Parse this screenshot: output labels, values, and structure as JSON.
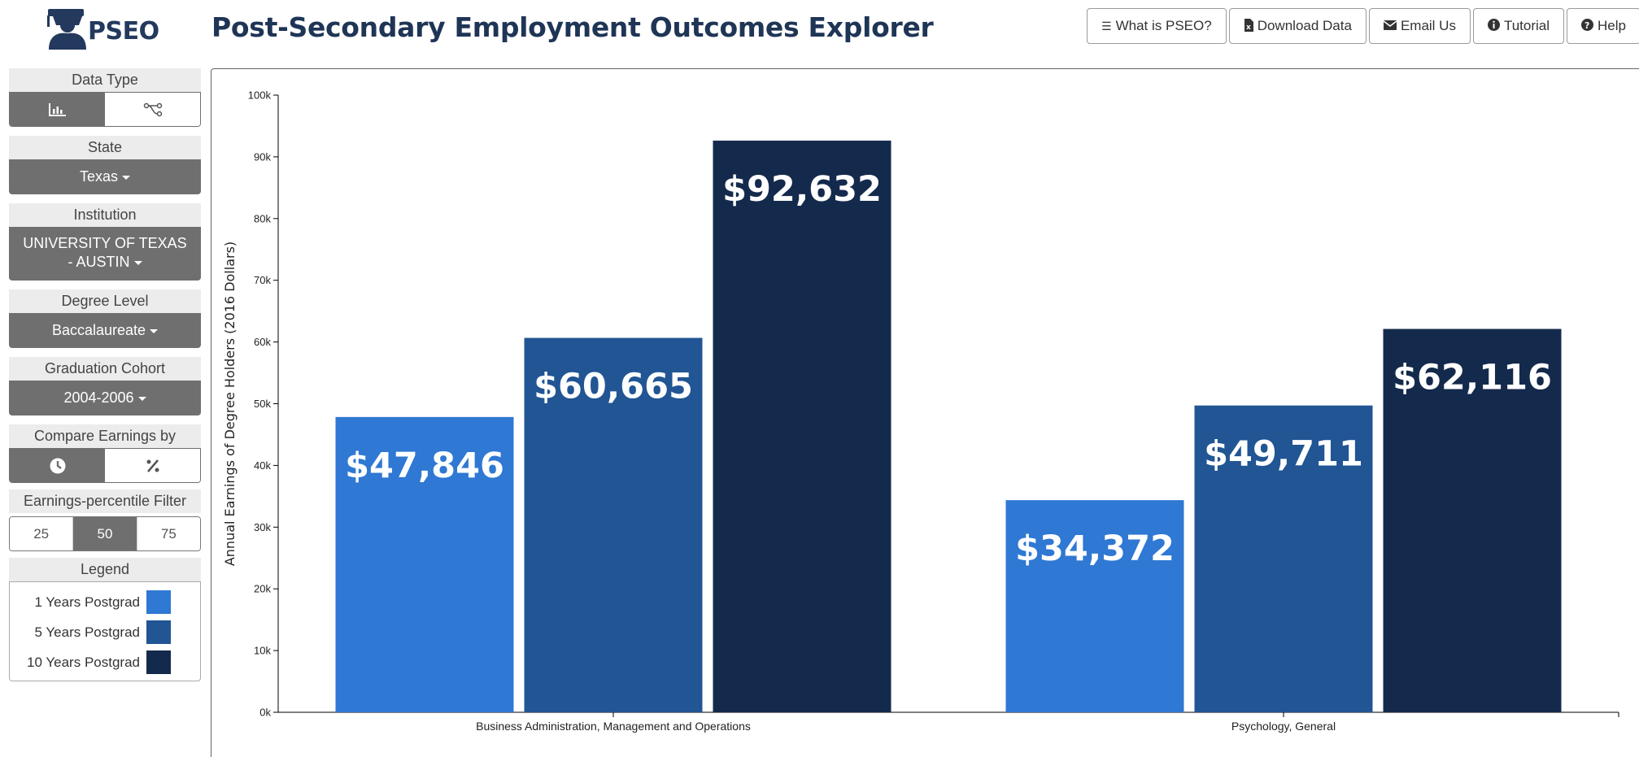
{
  "header": {
    "logo_text": "PSEO",
    "title": "Post-Secondary Employment Outcomes Explorer"
  },
  "topnav": [
    {
      "label": "What is PSEO?",
      "icon": "list-icon"
    },
    {
      "label": "Download Data",
      "icon": "file-excel-icon"
    },
    {
      "label": "Email Us",
      "icon": "envelope-icon"
    },
    {
      "label": "Tutorial",
      "icon": "info-circle-icon"
    },
    {
      "label": "Help",
      "icon": "question-circle-icon"
    }
  ],
  "sidebar": {
    "data_type": {
      "label": "Data Type",
      "options": [
        "bar-chart-icon",
        "flow-icon"
      ],
      "selected": 0
    },
    "state": {
      "label": "State",
      "value": "Texas"
    },
    "institution": {
      "label": "Institution",
      "value_line1": "UNIVERSITY OF TEXAS",
      "value_line2": "- AUSTIN"
    },
    "degree_level": {
      "label": "Degree Level",
      "value": "Baccalaureate"
    },
    "graduation_cohort": {
      "label": "Graduation Cohort",
      "value": "2004-2006"
    },
    "compare_by": {
      "label": "Compare Earnings by",
      "options": [
        "clock-icon",
        "percent-icon"
      ],
      "selected": 0
    },
    "percentile_filter": {
      "label": "Earnings-percentile Filter",
      "options": [
        "25",
        "50",
        "75"
      ],
      "selected": 1
    },
    "legend": {
      "label": "Legend",
      "items": [
        {
          "label": "1 Years Postgrad",
          "color": "#2f78d3"
        },
        {
          "label": "5 Years Postgrad",
          "color": "#215594"
        },
        {
          "label": "10 Years Postgrad",
          "color": "#142a4c"
        }
      ]
    }
  },
  "chart_data": {
    "type": "bar",
    "categories": [
      "Business Administration, Management and Operations",
      "Psychology, General"
    ],
    "series": [
      {
        "name": "1 Years Postgrad",
        "values": [
          47846,
          34372
        ],
        "color": "#2f78d3"
      },
      {
        "name": "5 Years Postgrad",
        "values": [
          60665,
          49711
        ],
        "color": "#215594"
      },
      {
        "name": "10 Years Postgrad",
        "values": [
          92632,
          62116
        ],
        "color": "#142a4c"
      }
    ],
    "value_labels": [
      [
        "$47,846",
        "$34,372"
      ],
      [
        "$60,665",
        "$49,711"
      ],
      [
        "$92,632",
        "$62,116"
      ]
    ],
    "ylabel": "Annual Earnings of Degree Holders (2016 Dollars)",
    "ylim": [
      0,
      100000
    ],
    "yticks": [
      0,
      10000,
      20000,
      30000,
      40000,
      50000,
      60000,
      70000,
      80000,
      90000,
      100000
    ],
    "ytick_labels": [
      "0k",
      "10k",
      "20k",
      "30k",
      "40k",
      "50k",
      "60k",
      "70k",
      "80k",
      "90k",
      "100k"
    ],
    "grid": false,
    "legend_position": "sidebar"
  }
}
